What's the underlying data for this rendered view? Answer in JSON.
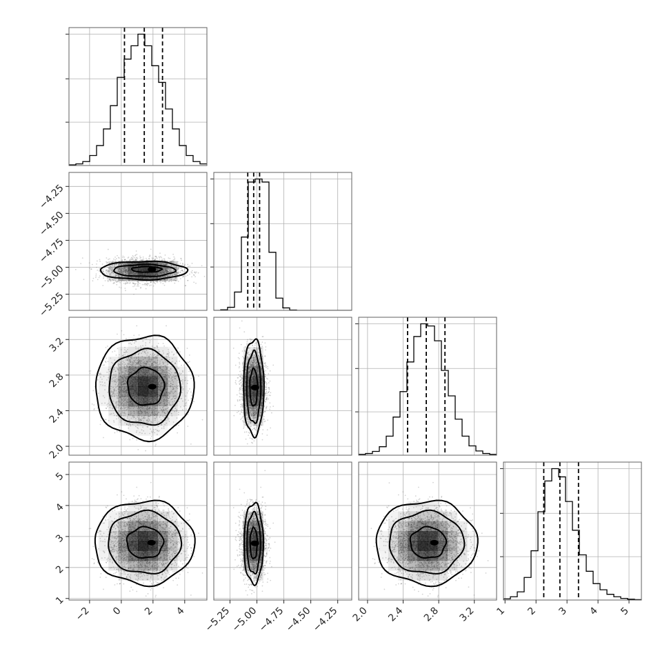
{
  "chart_data": {
    "type": "corner",
    "title": "",
    "grid": true,
    "parameters": [
      {
        "range": [
          -3.3,
          5.4
        ],
        "ticks": [
          -2,
          0,
          2,
          4
        ],
        "tick_labels": [
          "−2",
          "0",
          "2",
          "4"
        ],
        "quantiles": [
          0.2,
          1.45,
          2.6
        ],
        "median": 1.45,
        "sigma": 1.15
      },
      {
        "range": [
          -5.4,
          -4.12
        ],
        "ticks": [
          -5.25,
          -5.0,
          -4.75,
          -4.5,
          -4.25
        ],
        "tick_labels": [
          "−5.25",
          "−5.00",
          "−4.75",
          "−4.50",
          "−4.25"
        ],
        "quantiles": [
          -5.085,
          -5.03,
          -4.975
        ],
        "median": -5.03,
        "sigma": 0.055
      },
      {
        "range": [
          1.9,
          3.45
        ],
        "ticks": [
          2.0,
          2.4,
          2.8,
          3.2
        ],
        "tick_labels": [
          "2.0",
          "2.4",
          "2.8",
          "3.2"
        ],
        "quantiles": [
          2.45,
          2.66,
          2.87
        ],
        "median": 2.66,
        "sigma": 0.21
      },
      {
        "range": [
          0.95,
          5.4
        ],
        "ticks": [
          1,
          2,
          3,
          4,
          5
        ],
        "tick_labels": [
          "1",
          "2",
          "3",
          "4",
          "5"
        ],
        "quantiles": [
          2.25,
          2.77,
          3.37
        ],
        "median": 2.77,
        "sigma": 0.55
      }
    ],
    "histograms": [
      {
        "param": 0,
        "bins": 20,
        "counts": [
          2,
          5,
          12,
          30,
          60,
          110,
          180,
          265,
          320,
          360,
          395,
          360,
          300,
          250,
          170,
          110,
          60,
          30,
          12,
          5
        ]
      },
      {
        "param": 1,
        "bins": 20,
        "counts": [
          0,
          2,
          10,
          60,
          240,
          420,
          430,
          420,
          190,
          40,
          8,
          1,
          0,
          0,
          0,
          0,
          0,
          0,
          0,
          0
        ]
      },
      {
        "param": 2,
        "bins": 20,
        "counts": [
          2,
          4,
          9,
          20,
          45,
          90,
          150,
          220,
          280,
          310,
          305,
          270,
          200,
          140,
          85,
          45,
          22,
          10,
          4,
          2
        ]
      },
      {
        "param": 3,
        "bins": 20,
        "counts": [
          3,
          8,
          20,
          55,
          120,
          215,
          290,
          320,
          300,
          240,
          170,
          110,
          70,
          40,
          25,
          14,
          8,
          4,
          2,
          1
        ]
      }
    ],
    "pairs": [
      {
        "x": 0,
        "y": 1,
        "contours": [
          {
            "level": 0.39,
            "cx": 1.6,
            "cy": -5.02,
            "rx": 0.95,
            "ry": 0.026
          },
          {
            "level": 0.86,
            "cx": 1.45,
            "cy": -5.03,
            "rx": 1.95,
            "ry": 0.055
          },
          {
            "level": 0.99,
            "cx": 1.4,
            "cy": -5.03,
            "rx": 2.75,
            "ry": 0.085
          }
        ]
      },
      {
        "x": 0,
        "y": 2,
        "contours": [
          {
            "level": 0.39,
            "cx": 1.55,
            "cy": 2.67,
            "rx": 1.15,
            "ry": 0.21
          },
          {
            "level": 0.86,
            "cx": 1.45,
            "cy": 2.66,
            "rx": 2.25,
            "ry": 0.42
          },
          {
            "level": 0.99,
            "cx": 1.45,
            "cy": 2.66,
            "rx": 3.1,
            "ry": 0.58
          }
        ]
      },
      {
        "x": 1,
        "y": 2,
        "contours": [
          {
            "level": 0.39,
            "cx": -5.03,
            "cy": 2.66,
            "rx": 0.035,
            "ry": 0.21
          },
          {
            "level": 0.86,
            "cx": -5.03,
            "cy": 2.66,
            "rx": 0.065,
            "ry": 0.4
          },
          {
            "level": 0.99,
            "cx": -5.03,
            "cy": 2.66,
            "rx": 0.095,
            "ry": 0.54
          }
        ]
      },
      {
        "x": 0,
        "y": 3,
        "contours": [
          {
            "level": 0.39,
            "cx": 1.5,
            "cy": 2.8,
            "rx": 1.15,
            "ry": 0.5
          },
          {
            "level": 0.86,
            "cx": 1.45,
            "cy": 2.8,
            "rx": 2.3,
            "ry": 1.0
          },
          {
            "level": 0.99,
            "cx": 1.45,
            "cy": 2.8,
            "rx": 3.15,
            "ry": 1.35
          }
        ]
      },
      {
        "x": 1,
        "y": 3,
        "contours": [
          {
            "level": 0.39,
            "cx": -5.03,
            "cy": 2.78,
            "rx": 0.033,
            "ry": 0.5
          },
          {
            "level": 0.86,
            "cx": -5.03,
            "cy": 2.78,
            "rx": 0.062,
            "ry": 0.98
          },
          {
            "level": 0.99,
            "cx": -5.03,
            "cy": 2.78,
            "rx": 0.09,
            "ry": 1.3
          }
        ]
      },
      {
        "x": 2,
        "y": 3,
        "contours": [
          {
            "level": 0.39,
            "cx": 2.68,
            "cy": 2.8,
            "rx": 0.2,
            "ry": 0.5
          },
          {
            "level": 0.86,
            "cx": 2.66,
            "cy": 2.8,
            "rx": 0.42,
            "ry": 1.0
          },
          {
            "level": 0.99,
            "cx": 2.66,
            "cy": 2.8,
            "rx": 0.57,
            "ry": 1.35
          }
        ]
      }
    ],
    "colors": {
      "line": "#000000",
      "density": "#000000",
      "points": "#7f7f7f",
      "grid": "#b0b0b0"
    }
  }
}
